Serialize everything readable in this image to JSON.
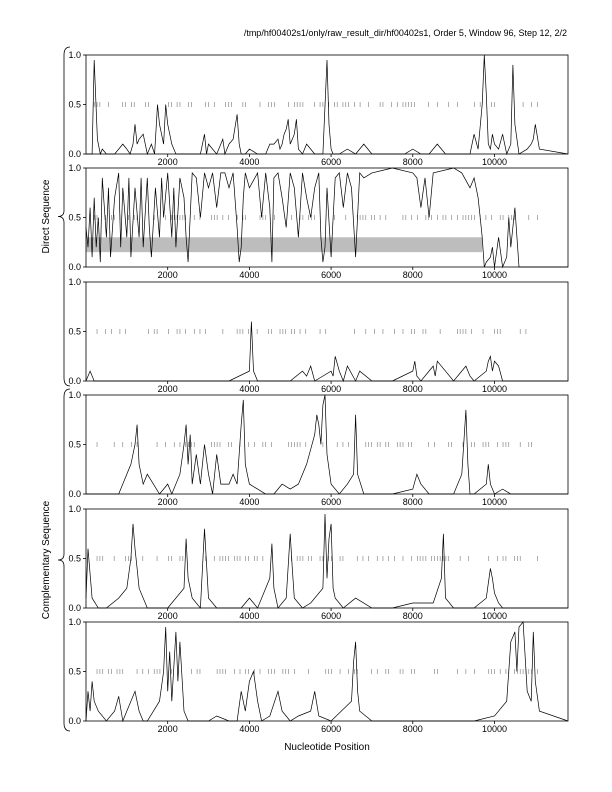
{
  "header": {
    "text": "/tmp/hf00402s1/only/raw_result_dir/hf00402s1, Order 5, Window 96, Step 12, 2/2"
  },
  "xlabel": "Nucleotide Position",
  "group_labels": [
    "Direct Sequence",
    "Complementary Sequence"
  ],
  "x_ticks": [
    "2000",
    "4000",
    "6000",
    "8000",
    "10000"
  ],
  "y_ticks": [
    "0.0",
    "0.5",
    "1.0"
  ],
  "colors": {
    "line": "#000000",
    "band": "#bdbdbd",
    "tickmark": "#777777",
    "frame": "#000000"
  },
  "chart_data": [
    {
      "type": "line",
      "group": "Direct Sequence",
      "frame": 1,
      "xlim": [
        0,
        11800
      ],
      "ylim": [
        0,
        1
      ],
      "series": [
        {
          "x": [
            0,
            150,
            200,
            280,
            350,
            400,
            500,
            700,
            800,
            900,
            1000,
            1080,
            1150,
            1200,
            1250,
            1300,
            1400,
            1500,
            1600,
            1680,
            1750,
            1800,
            1900,
            1950,
            2000,
            2100,
            2200,
            2400,
            2600,
            2800,
            2900,
            2950,
            3000,
            3100,
            3200,
            3300,
            3350,
            3400,
            3500,
            3600,
            3700,
            3750,
            3800,
            3900,
            4000,
            4200,
            4400,
            4500,
            4600,
            4700,
            4750,
            4800,
            4850,
            4900,
            4950,
            5000,
            5050,
            5100,
            5150,
            5200,
            5300,
            5400,
            5500,
            5600,
            5800,
            5900,
            5950,
            6000,
            6050,
            6200,
            6400,
            6600,
            6800,
            7000,
            7200,
            7400,
            7600,
            7800,
            8000,
            8200,
            8400,
            8600,
            8800,
            9000,
            9200,
            9400,
            9500,
            9600,
            9700,
            9750,
            9800,
            9850,
            9900,
            9950,
            10000,
            10100,
            10200,
            10300,
            10400,
            10450,
            10500,
            10600,
            10800,
            10900,
            10950,
            11000,
            11100,
            11800
          ],
          "y": [
            0,
            0,
            0.95,
            0.15,
            0,
            0.05,
            0,
            0,
            0.05,
            0.1,
            0.05,
            0,
            0.1,
            0.3,
            0.1,
            0.15,
            0.2,
            0,
            0.1,
            0,
            0.5,
            0.3,
            0.1,
            0.5,
            0.3,
            0.1,
            0,
            0,
            0,
            0,
            0.2,
            0,
            0.1,
            0.05,
            0,
            0.1,
            0.15,
            0,
            0.1,
            0.15,
            0.4,
            0.1,
            0,
            0,
            0.05,
            0,
            0,
            0.1,
            0.1,
            0.15,
            0.05,
            0.1,
            0.2,
            0.25,
            0.35,
            0.1,
            0.15,
            0.2,
            0.35,
            0.05,
            0,
            0.1,
            0.05,
            0,
            0,
            0.95,
            0.3,
            0.05,
            0,
            0,
            0.05,
            0,
            0.1,
            0,
            0,
            0,
            0,
            0,
            0.05,
            0,
            0,
            0.1,
            0,
            0,
            0,
            0,
            0.2,
            0.05,
            0.5,
            1.0,
            0.6,
            0.1,
            0.05,
            0.2,
            0.1,
            0.05,
            0.2,
            0,
            0.1,
            0.9,
            0.3,
            0,
            0.05,
            0.1,
            0.15,
            0.3,
            0.05,
            0
          ]
        }
      ]
    },
    {
      "type": "line",
      "group": "Direct Sequence",
      "frame": 2,
      "xlim": [
        0,
        11800
      ],
      "ylim": [
        0,
        1
      ],
      "band": {
        "x": [
          0,
          9700
        ],
        "y": [
          0.15,
          0.3
        ]
      },
      "series": [
        {
          "x": [
            0,
            50,
            100,
            150,
            200,
            250,
            300,
            350,
            400,
            500,
            550,
            600,
            700,
            800,
            850,
            900,
            1000,
            1050,
            1100,
            1200,
            1300,
            1350,
            1400,
            1500,
            1550,
            1600,
            1700,
            1800,
            1850,
            1900,
            2000,
            2100,
            2150,
            2200,
            2300,
            2400,
            2450,
            2500,
            2600,
            2700,
            2800,
            2900,
            3000,
            3100,
            3200,
            3300,
            3400,
            3500,
            3600,
            3700,
            3750,
            3800,
            3850,
            3900,
            4000,
            4200,
            4300,
            4400,
            4500,
            4550,
            4600,
            4700,
            4800,
            4900,
            5000,
            5100,
            5200,
            5300,
            5400,
            5500,
            5600,
            5700,
            5750,
            5800,
            5850,
            5900,
            6000,
            6100,
            6200,
            6300,
            6400,
            6500,
            6600,
            6700,
            6800,
            7000,
            7500,
            8000,
            8100,
            8200,
            8300,
            8400,
            8500,
            9000,
            9200,
            9400,
            9500,
            9600,
            9650,
            9700,
            9750,
            9800,
            9900,
            9950,
            10000,
            10100,
            10200,
            10300,
            10350,
            10400,
            10500,
            10600,
            10800,
            11000,
            11800
          ],
          "y": [
            0.4,
            0.2,
            0.6,
            0.1,
            0.7,
            0.2,
            0.5,
            0.05,
            0.9,
            0.3,
            0.8,
            0.1,
            0.7,
            0.95,
            0.2,
            0.8,
            0.3,
            0.9,
            0.1,
            0.8,
            0.3,
            0.9,
            0.2,
            0.9,
            0.4,
            0.1,
            0.8,
            0.3,
            0.9,
            0.5,
            0.95,
            0.3,
            0.8,
            0.2,
            0.9,
            0.7,
            0.3,
            0.05,
            0.95,
            0.9,
            0.5,
            0.95,
            0.8,
            0.95,
            0.6,
            0.95,
            0.95,
            0.8,
            0.95,
            0.4,
            0.05,
            0.2,
            0.7,
            0.95,
            0.8,
            0.95,
            0.5,
            0.95,
            0.6,
            0.05,
            0.9,
            0.95,
            0.7,
            0.4,
            0.95,
            0.8,
            0.3,
            0.95,
            0.7,
            0.5,
            0.8,
            0.95,
            0.3,
            0.05,
            0.2,
            0.8,
            0.1,
            0.9,
            0.95,
            0.6,
            0.95,
            0.8,
            0.1,
            0.95,
            0.9,
            0.95,
            1.0,
            0.95,
            0.9,
            0.6,
            0.9,
            0.5,
            0.95,
            1.0,
            0.95,
            0.8,
            0.9,
            0.7,
            0.5,
            0.3,
            0,
            0.05,
            0.1,
            0.2,
            0,
            0.3,
            0,
            0.1,
            0.5,
            0.2,
            0.6,
            0,
            0,
            0,
            0
          ]
        }
      ]
    },
    {
      "type": "line",
      "group": "Direct Sequence",
      "frame": 3,
      "xlim": [
        0,
        11800
      ],
      "ylim": [
        0,
        1
      ],
      "series": [
        {
          "x": [
            0,
            50,
            100,
            200,
            500,
            1000,
            1500,
            2000,
            2500,
            3000,
            3500,
            4000,
            4050,
            4100,
            4200,
            4500,
            5000,
            5300,
            5400,
            5500,
            5600,
            6000,
            6050,
            6100,
            6200,
            6300,
            6400,
            6600,
            6700,
            7000,
            7500,
            8000,
            8050,
            8100,
            8200,
            8500,
            8550,
            8600,
            9000,
            9300,
            9400,
            9500,
            9800,
            9850,
            9900,
            9950,
            10000,
            10100,
            10200,
            11800
          ],
          "y": [
            0,
            0.05,
            0.1,
            0,
            0,
            0,
            0,
            0,
            0,
            0,
            0,
            0.1,
            0.6,
            0.1,
            0,
            0,
            0,
            0.1,
            0.05,
            0.15,
            0,
            0.1,
            0.05,
            0.25,
            0.1,
            0,
            0.15,
            0,
            0.1,
            0,
            0,
            0.1,
            0.2,
            0.05,
            0,
            0.15,
            0.05,
            0.2,
            0,
            0.15,
            0.05,
            0,
            0.1,
            0.2,
            0.25,
            0.1,
            0.2,
            0.15,
            0,
            0
          ]
        }
      ]
    },
    {
      "type": "line",
      "group": "Complementary Sequence",
      "frame": 1,
      "xlim": [
        0,
        11800
      ],
      "ylim": [
        0,
        1
      ],
      "series": [
        {
          "x": [
            0,
            200,
            500,
            800,
            1000,
            1100,
            1200,
            1250,
            1300,
            1400,
            1500,
            1800,
            2000,
            2100,
            2300,
            2400,
            2450,
            2500,
            2550,
            2600,
            2700,
            2800,
            2900,
            3000,
            3100,
            3200,
            3300,
            3500,
            3600,
            3700,
            3800,
            3850,
            3900,
            3950,
            4000,
            4200,
            4400,
            4600,
            4800,
            5000,
            5200,
            5400,
            5600,
            5650,
            5700,
            5750,
            5800,
            5850,
            5900,
            6000,
            6200,
            6400,
            6550,
            6600,
            6650,
            6800,
            7000,
            7500,
            8000,
            8100,
            8200,
            8400,
            8600,
            9000,
            9200,
            9300,
            9350,
            9400,
            9500,
            9800,
            9850,
            9900,
            10000,
            10200,
            10400,
            11000,
            11800
          ],
          "y": [
            0,
            0,
            0,
            0,
            0.2,
            0.3,
            0.5,
            0.7,
            0.3,
            0.1,
            0.2,
            0,
            0.1,
            0,
            0.2,
            0.5,
            0.7,
            0.3,
            0.6,
            0.1,
            0.4,
            0.1,
            0.5,
            0.2,
            0,
            0.4,
            0.1,
            0.1,
            0.2,
            0.1,
            0.7,
            0.95,
            0.3,
            0.2,
            0.1,
            0.05,
            0,
            0,
            0.1,
            0.05,
            0.1,
            0.3,
            0.6,
            0.8,
            0.7,
            0.5,
            0.9,
            1.0,
            0.4,
            0.1,
            0,
            0.1,
            0.2,
            0.8,
            0.2,
            0,
            0,
            0,
            0.05,
            0.2,
            0.1,
            0,
            0,
            0,
            0.2,
            0.85,
            0.3,
            0,
            0,
            0.1,
            0.3,
            0.1,
            0,
            0.05,
            0,
            0,
            0
          ]
        }
      ]
    },
    {
      "type": "line",
      "group": "Complementary Sequence",
      "frame": 2,
      "xlim": [
        0,
        11800
      ],
      "ylim": [
        0,
        1
      ],
      "series": [
        {
          "x": [
            0,
            50,
            150,
            300,
            500,
            800,
            1000,
            1100,
            1150,
            1200,
            1250,
            1300,
            1400,
            1500,
            2000,
            2400,
            2450,
            2500,
            2600,
            2800,
            2900,
            3000,
            3200,
            3500,
            3800,
            4000,
            4200,
            4500,
            4550,
            4600,
            4700,
            4900,
            5000,
            5050,
            5100,
            5300,
            5500,
            5800,
            5850,
            5900,
            5950,
            6000,
            6050,
            6100,
            6300,
            6600,
            7000,
            7500,
            8000,
            8500,
            8700,
            8750,
            8800,
            9000,
            9500,
            9800,
            9850,
            9900,
            9950,
            10000,
            10100,
            10200,
            11000,
            11800
          ],
          "y": [
            0.1,
            0.6,
            0.1,
            0,
            0,
            0.1,
            0.2,
            0.5,
            0.85,
            0.6,
            0.4,
            0.2,
            0.1,
            0,
            0,
            0.2,
            0.7,
            0.3,
            0.1,
            0,
            0.8,
            0.1,
            0,
            0,
            0,
            0.1,
            0,
            0.3,
            0.65,
            0.2,
            0,
            0.1,
            0.75,
            0.4,
            0.1,
            0,
            0.05,
            0.2,
            0.95,
            0.3,
            0.7,
            0.85,
            0.2,
            0.1,
            0,
            0.1,
            0,
            0,
            0.05,
            0.05,
            0.3,
            0.75,
            0.1,
            0,
            0,
            0.1,
            0.25,
            0.4,
            0.3,
            0.15,
            0.05,
            0,
            0,
            0
          ]
        }
      ]
    },
    {
      "type": "line",
      "group": "Complementary Sequence",
      "frame": 3,
      "xlim": [
        0,
        11800
      ],
      "ylim": [
        0,
        1
      ],
      "series": [
        {
          "x": [
            0,
            50,
            100,
            150,
            200,
            300,
            500,
            700,
            800,
            900,
            1000,
            1100,
            1200,
            1300,
            1400,
            1500,
            1800,
            1900,
            1950,
            2000,
            2050,
            2100,
            2200,
            2250,
            2300,
            2400,
            2500,
            2800,
            3000,
            3200,
            3500,
            3700,
            3800,
            3900,
            4000,
            4100,
            4200,
            4300,
            4500,
            4700,
            4800,
            5000,
            5200,
            5500,
            5600,
            5700,
            6000,
            6500,
            6550,
            6600,
            6650,
            6700,
            7000,
            7500,
            8000,
            8500,
            9000,
            9500,
            10000,
            10300,
            10400,
            10500,
            10550,
            10600,
            10700,
            10800,
            10900,
            10950,
            11000,
            11100,
            11800
          ],
          "y": [
            0,
            0.3,
            0.1,
            0.4,
            0.2,
            0.1,
            0,
            0.1,
            0.25,
            0,
            0.1,
            0.2,
            0.3,
            0.1,
            0,
            0,
            0.2,
            0.5,
            0.95,
            0.3,
            0.7,
            0.2,
            0.9,
            0.4,
            0.8,
            0.1,
            0,
            0,
            0,
            0.05,
            0,
            0,
            0.3,
            0.1,
            0.4,
            0.5,
            0.2,
            0,
            0.05,
            0.3,
            0.1,
            0,
            0.05,
            0.1,
            0.3,
            0.05,
            0,
            0.2,
            0.6,
            0.8,
            0.3,
            0.1,
            0,
            0,
            0,
            0,
            0,
            0,
            0.05,
            0.2,
            0.8,
            0.9,
            0.5,
            0.95,
            1.0,
            0.3,
            0.2,
            0.9,
            0.4,
            0.1,
            0
          ]
        }
      ]
    }
  ]
}
